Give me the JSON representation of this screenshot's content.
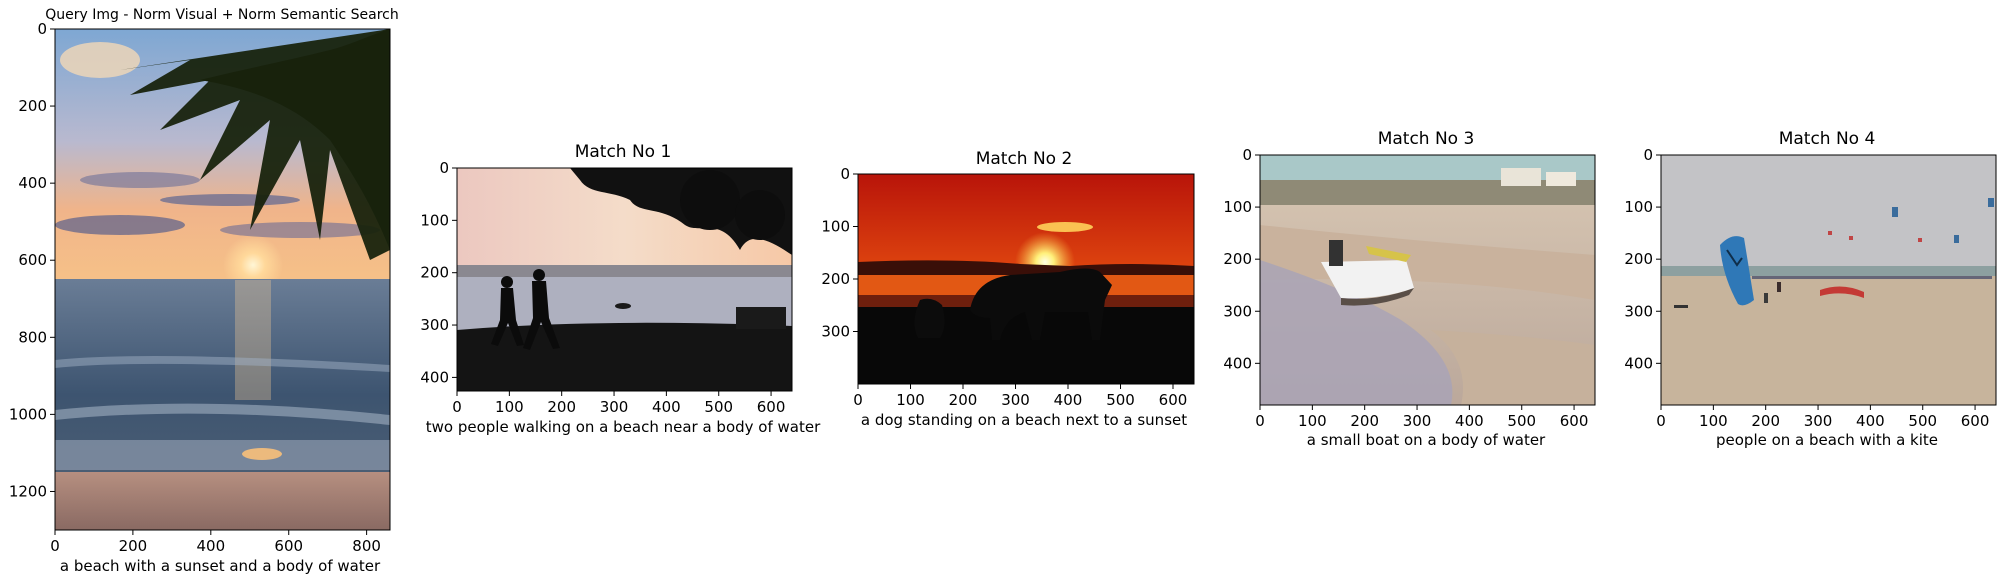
{
  "figure": {
    "panels": [
      {
        "id": "query",
        "title": "Query Img - Norm Visual + Norm Semantic Search",
        "caption": "a beach with a sunset and a body of water",
        "x_ticks": [
          "0",
          "200",
          "400",
          "600",
          "800"
        ],
        "y_ticks": [
          "0",
          "200",
          "400",
          "600",
          "800",
          "1000",
          "1200"
        ],
        "scene": "tropical sunset over the sea with palm fronds and sandy shore"
      },
      {
        "id": "match-1",
        "title": "Match No 1",
        "caption": "two people walking on a beach near a body of water",
        "x_ticks": [
          "0",
          "100",
          "200",
          "300",
          "400",
          "500",
          "600"
        ],
        "y_ticks": [
          "0",
          "100",
          "200",
          "300",
          "400"
        ],
        "scene": "silhouette of two people walking by the water at sunset under trees"
      },
      {
        "id": "match-2",
        "title": "Match No 2",
        "caption": "a dog standing on a beach next to a sunset",
        "x_ticks": [
          "0",
          "100",
          "200",
          "300",
          "400",
          "500",
          "600"
        ],
        "y_ticks": [
          "0",
          "100",
          "200",
          "300"
        ],
        "scene": "dog silhouette on a beach against an orange sunset"
      },
      {
        "id": "match-3",
        "title": "Match No 3",
        "caption": "a small boat on a body of water",
        "x_ticks": [
          "0",
          "100",
          "200",
          "300",
          "400",
          "500",
          "600"
        ],
        "y_ticks": [
          "0",
          "100",
          "200",
          "300",
          "400"
        ],
        "scene": "small motor boat on wet sand near a seaside town"
      },
      {
        "id": "match-4",
        "title": "Match No 4",
        "caption": "people on a beach with a kite",
        "x_ticks": [
          "0",
          "100",
          "200",
          "300",
          "400",
          "500",
          "600"
        ],
        "y_ticks": [
          "0",
          "100",
          "200",
          "300",
          "400"
        ],
        "scene": "wide sandy beach with kitesurfing kites and a blue sail"
      }
    ]
  }
}
